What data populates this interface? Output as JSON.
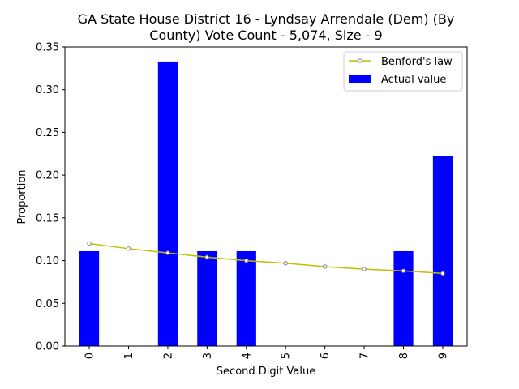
{
  "chart_data": {
    "type": "bar",
    "title": [
      "GA State House District 16 - Lyndsay Arrendale (Dem) (By",
      "County) Vote Count - 5,074, Size - 9"
    ],
    "xlabel": "Second Digit Value",
    "ylabel": "Proportion",
    "categories": [
      "0",
      "1",
      "2",
      "3",
      "4",
      "5",
      "6",
      "7",
      "8",
      "9"
    ],
    "ylim": [
      0,
      0.35
    ],
    "yticks": [
      "0.00",
      "0.05",
      "0.10",
      "0.15",
      "0.20",
      "0.25",
      "0.30",
      "0.35"
    ],
    "series": [
      {
        "name": "Actual value",
        "kind": "bar",
        "color": "#0000ff",
        "values": [
          0.111,
          0.0,
          0.333,
          0.111,
          0.111,
          0.0,
          0.0,
          0.0,
          0.111,
          0.222
        ]
      },
      {
        "name": "Benford's law",
        "kind": "line",
        "color": "#bfbf00",
        "marker_color": "#808080",
        "values": [
          0.12,
          0.114,
          0.109,
          0.104,
          0.1,
          0.097,
          0.093,
          0.09,
          0.088,
          0.085
        ]
      }
    ],
    "legend": {
      "position": "upper-right",
      "entries": [
        "Benford's law",
        "Actual value"
      ]
    },
    "grid": false
  }
}
